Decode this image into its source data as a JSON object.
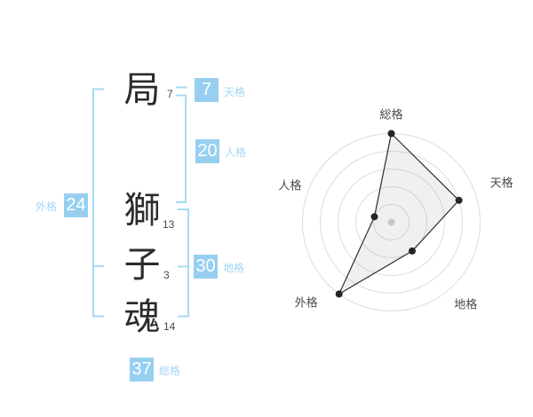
{
  "colors": {
    "accent_badge": "#97cff1",
    "accent_text": "#a3d6f3",
    "accent_line": "#a6daf6",
    "kanji_text": "#2b2b2b",
    "chart_ring": "#dcdcdc",
    "chart_line": "#2e2e2e",
    "chart_center_dot": "#c8c8c8"
  },
  "name": {
    "chars": [
      {
        "char": "局",
        "strokes": "7"
      },
      {
        "char": "獅",
        "strokes": "13"
      },
      {
        "char": "子",
        "strokes": "3"
      },
      {
        "char": "魂",
        "strokes": "14"
      }
    ]
  },
  "gokaku": {
    "tenkaku": {
      "label": "天格",
      "value": "7"
    },
    "jinkaku": {
      "label": "人格",
      "value": "20"
    },
    "chikaku": {
      "label": "地格",
      "value": "30"
    },
    "gaikaku": {
      "label": "外格",
      "value": "24"
    },
    "soukaku": {
      "label": "総格",
      "value": "37"
    }
  },
  "chart_data": {
    "type": "radar",
    "axes": [
      "総格",
      "天格",
      "地格",
      "外格",
      "人格"
    ],
    "values": [
      5,
      4,
      2,
      5,
      1
    ],
    "scale_max": 5,
    "rings": 5,
    "grid": "concentric-circles",
    "legend": false,
    "center_marker": true
  }
}
